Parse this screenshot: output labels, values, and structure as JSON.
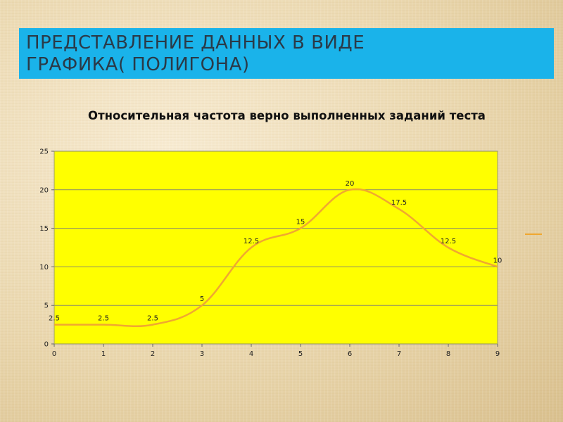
{
  "slide": {
    "title_line1": "ПРЕДСТАВЛЕНИЕ ДАННЫХ В ВИДЕ",
    "title_line2": "ГРАФИКА( ПОЛИГОНА)"
  },
  "colors": {
    "title_bar": "#1ab3ea",
    "plot_area": "#ffff00",
    "series_line": "#f0a830",
    "gridline": "#8c8c6a"
  },
  "chart_data": {
    "type": "line",
    "title": "Относительная частота верно выполненных заданий теста",
    "xlabel": "",
    "ylabel": "",
    "x": [
      0,
      1,
      2,
      3,
      4,
      5,
      6,
      7,
      8,
      9
    ],
    "series": [
      {
        "values": [
          2.5,
          2.5,
          2.5,
          5,
          12.5,
          15,
          20,
          17.5,
          12.5,
          10
        ],
        "data_labels": [
          "2.5",
          "2.5",
          "2.5",
          "5",
          "12.5",
          "15",
          "20",
          "17.5",
          "12.5",
          "10"
        ]
      }
    ],
    "xlim": [
      0,
      9
    ],
    "ylim": [
      0,
      25
    ],
    "x_ticks": [
      "0",
      "1",
      "2",
      "3",
      "4",
      "5",
      "6",
      "7",
      "8",
      "9"
    ],
    "y_ticks": [
      "0",
      "5",
      "10",
      "15",
      "20",
      "25"
    ],
    "grid": "horizontal",
    "legend": "right",
    "smooth": true
  }
}
